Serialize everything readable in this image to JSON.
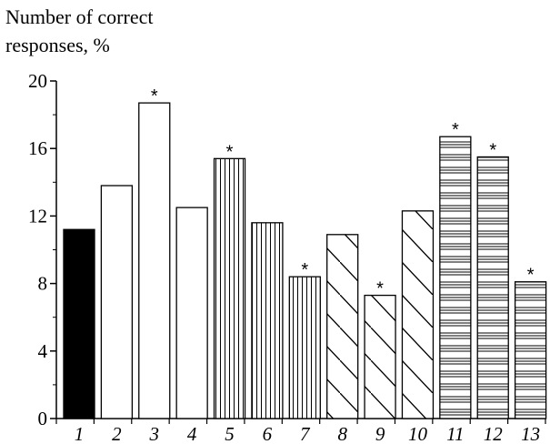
{
  "chart_data": {
    "type": "bar",
    "ylabel_line1": "Number of correct",
    "ylabel_line2": "responses, %",
    "ylim": [
      0,
      20
    ],
    "yticks": [
      0,
      4,
      8,
      12,
      16,
      20
    ],
    "categories": [
      "1",
      "2",
      "3",
      "4",
      "5",
      "6",
      "7",
      "8",
      "9",
      "10",
      "11",
      "12",
      "13"
    ],
    "values": [
      11.2,
      13.8,
      18.7,
      12.5,
      15.4,
      11.6,
      8.4,
      10.9,
      7.3,
      12.3,
      16.7,
      15.5,
      8.1
    ],
    "significant": [
      false,
      false,
      true,
      false,
      true,
      false,
      true,
      false,
      true,
      false,
      true,
      true,
      true
    ],
    "significance_marker": "*",
    "patterns": [
      "solid",
      "plain",
      "plain",
      "plain",
      "vertical",
      "vertical",
      "vertical",
      "diagonal",
      "diagonal",
      "diagonal",
      "horizontal",
      "horizontal",
      "horizontal"
    ],
    "bar_color": "#000000",
    "grid": false
  }
}
